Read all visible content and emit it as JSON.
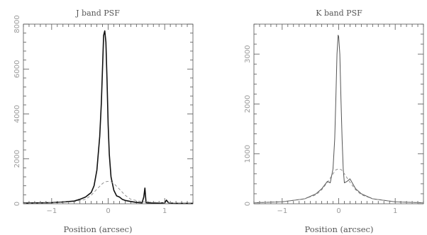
{
  "chart_data": [
    {
      "type": "line",
      "title": "J band PSF",
      "xlabel": "Position (arcsec)",
      "ylabel": "",
      "xlim": [
        -1.5,
        1.5
      ],
      "ylim": [
        0,
        8000
      ],
      "xticks": [
        -1,
        0,
        1
      ],
      "xtick_labels": [
        "−1",
        "0",
        "1"
      ],
      "yticks": [
        0,
        2000,
        4000,
        6000,
        8000
      ],
      "ytick_labels": [
        "0",
        "2000",
        "4000",
        "6000",
        "8000"
      ],
      "grid": false,
      "series": [
        {
          "style": "solid",
          "color": "#111111",
          "x": [
            -1.5,
            -1.2,
            -1.0,
            -0.8,
            -0.6,
            -0.5,
            -0.4,
            -0.3,
            -0.25,
            -0.2,
            -0.15,
            -0.12,
            -0.1,
            -0.08,
            -0.06,
            -0.04,
            -0.02,
            0.0,
            0.02,
            0.05,
            0.1,
            0.15,
            0.2,
            0.25,
            0.3,
            0.4,
            0.5,
            0.6,
            0.63,
            0.65,
            0.67,
            0.7,
            0.8,
            0.9,
            1.0,
            1.03,
            1.07,
            1.1,
            1.2,
            1.3,
            1.5
          ],
          "y": [
            30,
            40,
            50,
            80,
            120,
            200,
            300,
            500,
            800,
            1500,
            3000,
            4500,
            6000,
            7500,
            7700,
            7200,
            5500,
            3500,
            2200,
            1200,
            600,
            350,
            300,
            200,
            150,
            100,
            60,
            40,
            300,
            700,
            50,
            40,
            30,
            30,
            40,
            160,
            40,
            30,
            20,
            20,
            20
          ]
        },
        {
          "style": "dashed",
          "color": "#888888",
          "x": [
            -1.5,
            -1.0,
            -0.6,
            -0.4,
            -0.3,
            -0.2,
            -0.1,
            -0.05,
            0.0,
            0.05,
            0.1,
            0.2,
            0.3,
            0.4,
            0.6,
            1.0,
            1.5
          ],
          "y": [
            20,
            40,
            90,
            200,
            380,
            650,
            900,
            980,
            1000,
            980,
            900,
            650,
            380,
            200,
            90,
            40,
            20
          ]
        }
      ]
    },
    {
      "type": "line",
      "title": "K band PSF",
      "xlabel": "Position (arcsec)",
      "ylabel": "",
      "xlim": [
        -1.5,
        1.5
      ],
      "ylim": [
        0,
        3600
      ],
      "xticks": [
        -1,
        0,
        1
      ],
      "xtick_labels": [
        "−1",
        "0",
        "1"
      ],
      "yticks": [
        0,
        1000,
        2000,
        3000
      ],
      "ytick_labels": [
        "0",
        "1000",
        "2000",
        "3000"
      ],
      "grid": false,
      "series": [
        {
          "style": "solid",
          "color": "#555555",
          "x": [
            -1.5,
            -1.0,
            -0.6,
            -0.4,
            -0.3,
            -0.2,
            -0.15,
            -0.1,
            -0.07,
            -0.05,
            -0.03,
            -0.01,
            0.0,
            0.02,
            0.04,
            0.06,
            0.08,
            0.1,
            0.15,
            0.2,
            0.3,
            0.4,
            0.6,
            1.0,
            1.5
          ],
          "y": [
            20,
            40,
            100,
            200,
            300,
            450,
            420,
            700,
            1300,
            2100,
            3000,
            3380,
            3350,
            3000,
            2100,
            1300,
            700,
            420,
            450,
            500,
            300,
            200,
            100,
            40,
            20
          ]
        },
        {
          "style": "dashed",
          "color": "#888888",
          "x": [
            -1.5,
            -1.0,
            -0.6,
            -0.4,
            -0.3,
            -0.2,
            -0.1,
            -0.05,
            0.0,
            0.05,
            0.1,
            0.2,
            0.3,
            0.4,
            0.6,
            1.0,
            1.5
          ],
          "y": [
            20,
            40,
            100,
            180,
            280,
            430,
            600,
            680,
            700,
            680,
            600,
            430,
            280,
            180,
            100,
            40,
            20
          ]
        }
      ]
    }
  ]
}
